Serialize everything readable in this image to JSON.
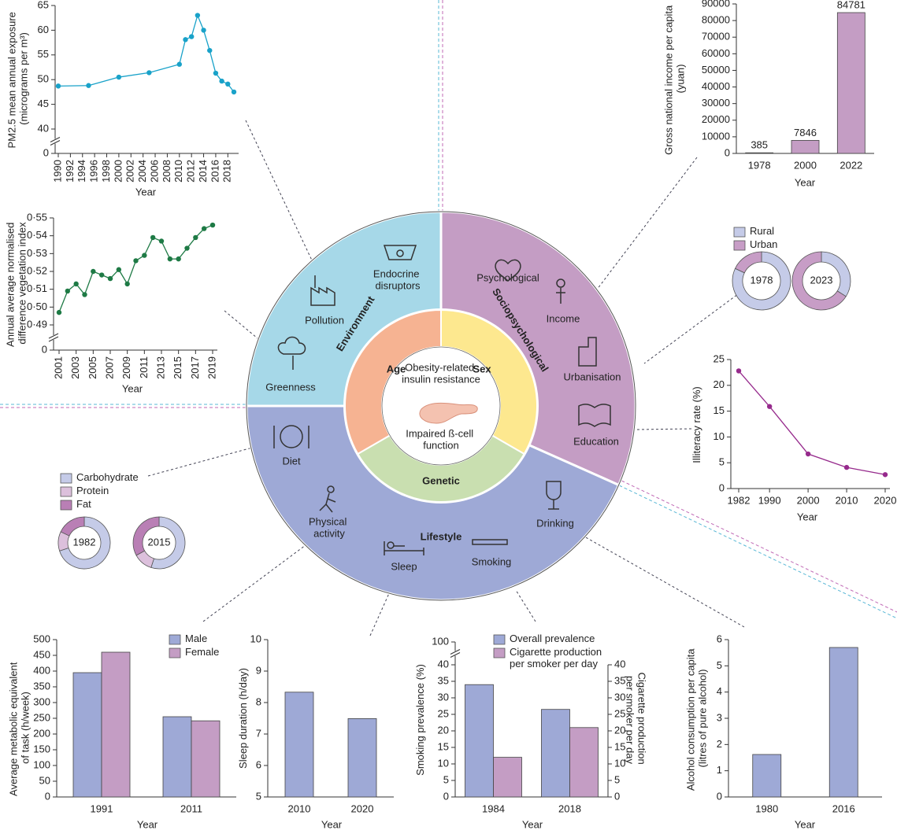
{
  "chart_data": [
    {
      "type": "line",
      "x_label": "Year",
      "y_label": "PM2.5 mean annual exposure (micrograms per m³)",
      "x": [
        1990,
        1995,
        2000,
        2005,
        2010,
        2011,
        2012,
        2013,
        2014,
        2015,
        2016,
        2017,
        2018,
        2019
      ],
      "values": [
        48.7,
        48.8,
        50.5,
        51.4,
        53.1,
        58.1,
        58.7,
        63.0,
        60.0,
        55.9,
        51.3,
        49.7,
        49.1,
        47.5
      ],
      "color": "#19a2c9",
      "xlim": [
        1990,
        2019
      ],
      "xticks": [
        1990,
        1992,
        1994,
        1996,
        1998,
        2000,
        2002,
        2004,
        2006,
        2008,
        2010,
        2012,
        2014,
        2016,
        2018
      ],
      "ylim": [
        40,
        65
      ],
      "yticks": [
        0,
        40,
        45,
        50,
        55,
        60,
        65
      ],
      "axis_break": true
    },
    {
      "type": "line",
      "x_label": "Year",
      "y_label": "Annual average normalised difference vegetation index",
      "x": [
        2001,
        2002,
        2003,
        2004,
        2005,
        2006,
        2007,
        2008,
        2009,
        2010,
        2011,
        2012,
        2013,
        2014,
        2015,
        2016,
        2017,
        2018,
        2019
      ],
      "values": [
        0.497,
        0.509,
        0.513,
        0.507,
        0.52,
        0.518,
        0.516,
        0.521,
        0.513,
        0.526,
        0.529,
        0.539,
        0.537,
        0.527,
        0.527,
        0.533,
        0.539,
        0.544,
        0.546
      ],
      "color": "#1e7a45",
      "xlim": [
        2001,
        2019
      ],
      "xticks": [
        2001,
        2003,
        2005,
        2007,
        2009,
        2011,
        2013,
        2015,
        2017,
        2019
      ],
      "ylim": [
        0.49,
        0.55
      ],
      "yticks": [
        0,
        {
          "value": 0.49,
          "label": "0·49"
        },
        {
          "value": 0.5,
          "label": "0·50"
        },
        {
          "value": 0.51,
          "label": "0·51"
        },
        {
          "value": 0.52,
          "label": "0·52"
        },
        {
          "value": 0.53,
          "label": "0·53"
        },
        {
          "value": 0.54,
          "label": "0·54"
        },
        {
          "value": 0.55,
          "label": "0·55"
        }
      ],
      "axis_break": true
    },
    {
      "type": "bar",
      "x_label": "Year",
      "y_label": "Gross national income per capita (yuan)",
      "categories": [
        "1978",
        "2000",
        "2022"
      ],
      "values": [
        385,
        7846,
        84781
      ],
      "color": "#c49dc4",
      "ylim": [
        0,
        90000
      ],
      "yticks": [
        0,
        10000,
        20000,
        30000,
        40000,
        50000,
        60000,
        70000,
        80000,
        90000
      ]
    },
    {
      "type": "donut",
      "categories": [
        "1978",
        "2023"
      ],
      "series": [
        {
          "name": "Rural",
          "color": "#c5cbe8",
          "values": [
            82,
            34
          ]
        },
        {
          "name": "Urban",
          "color": "#c79dc6",
          "values": [
            18,
            66
          ]
        }
      ]
    },
    {
      "type": "line",
      "x_label": "Year",
      "y_label": "Illiteracy rate (%)",
      "x": [
        1982,
        1990,
        2000,
        2010,
        2020
      ],
      "values": [
        22.8,
        15.9,
        6.7,
        4.1,
        2.7
      ],
      "color": "#962a8c",
      "xlim": [
        1982,
        2020
      ],
      "xticks": [
        1982,
        1990,
        2000,
        2010,
        2020
      ],
      "ylim": [
        0,
        25
      ],
      "yticks": [
        0,
        5,
        10,
        15,
        20,
        25
      ]
    },
    {
      "type": "donut",
      "categories": [
        "1982",
        "2015"
      ],
      "series": [
        {
          "name": "Carbohydrate",
          "color": "#c5cbe8",
          "values": [
            70,
            55
          ]
        },
        {
          "name": "Protein",
          "color": "#dcc0dc",
          "values": [
            12,
            12
          ]
        },
        {
          "name": "Fat",
          "color": "#b97fb5",
          "values": [
            18,
            33
          ]
        }
      ]
    },
    {
      "type": "bar",
      "x_label": "Year",
      "y_label": "Average metabolic equivalent of task (h/week)",
      "categories": [
        "1991",
        "2011"
      ],
      "series": [
        {
          "name": "Male",
          "color": "#9ea9d6",
          "values": [
            395,
            255
          ]
        },
        {
          "name": "Female",
          "color": "#c49dc4",
          "values": [
            460,
            242
          ]
        }
      ],
      "ylim": [
        0,
        500
      ],
      "yticks": [
        0,
        50,
        100,
        150,
        200,
        250,
        300,
        350,
        400,
        450,
        500
      ]
    },
    {
      "type": "bar",
      "x_label": "Year",
      "y_label": "Sleep duration (h/day)",
      "categories": [
        "2010",
        "2020"
      ],
      "values": [
        8.33,
        7.49
      ],
      "color": "#9ea9d6",
      "ylim": [
        5,
        10
      ],
      "yticks": [
        5,
        6,
        7,
        8,
        9,
        10
      ]
    },
    {
      "type": "bar",
      "x_label": "Year",
      "y_label": "Smoking prevalence (%)",
      "y2_label": "Cigarette production per smoker per day",
      "categories": [
        "1984",
        "2018"
      ],
      "series": [
        {
          "name": "Overall prevalence",
          "color": "#9ea9d6",
          "values": [
            34,
            26.5
          ]
        },
        {
          "name": "Cigarette production per smoker per day",
          "color": "#c49dc4",
          "values": [
            12,
            21
          ],
          "axis": "y2"
        }
      ],
      "ylim": [
        0,
        40
      ],
      "yticks": [
        0,
        5,
        10,
        15,
        20,
        25,
        30,
        35,
        40,
        100
      ],
      "axis_break": true,
      "y2lim": [
        0,
        40
      ],
      "y2ticks": [
        0,
        5,
        10,
        15,
        20,
        25,
        30,
        35,
        40
      ]
    },
    {
      "type": "bar",
      "x_label": "Year",
      "y_label": "Alcohol consumption per capita (litres of pure alcohol)",
      "categories": [
        "1980",
        "2016"
      ],
      "values": [
        1.62,
        5.7
      ],
      "color": "#9ea9d6",
      "ylim": [
        0,
        6
      ],
      "yticks": [
        0,
        1,
        2,
        3,
        4,
        5,
        6
      ]
    }
  ],
  "diagram": {
    "centre": [
      "Obesity-related insulin resistance",
      "Impaired ß-cell function"
    ],
    "core": [
      "Age",
      "Sex",
      "Genetic"
    ],
    "domains": [
      {
        "label": "Environment",
        "factors": [
          "Endocrine disruptors",
          "Pollution",
          "Greenness"
        ]
      },
      {
        "label": "Sociopsychological",
        "factors": [
          "Psychological",
          "Income",
          "Urbanisation",
          "Education"
        ]
      },
      {
        "label": "Lifestyle",
        "factors": [
          "Diet",
          "Physical activity",
          "Sleep",
          "Smoking",
          "Drinking"
        ]
      }
    ]
  }
}
